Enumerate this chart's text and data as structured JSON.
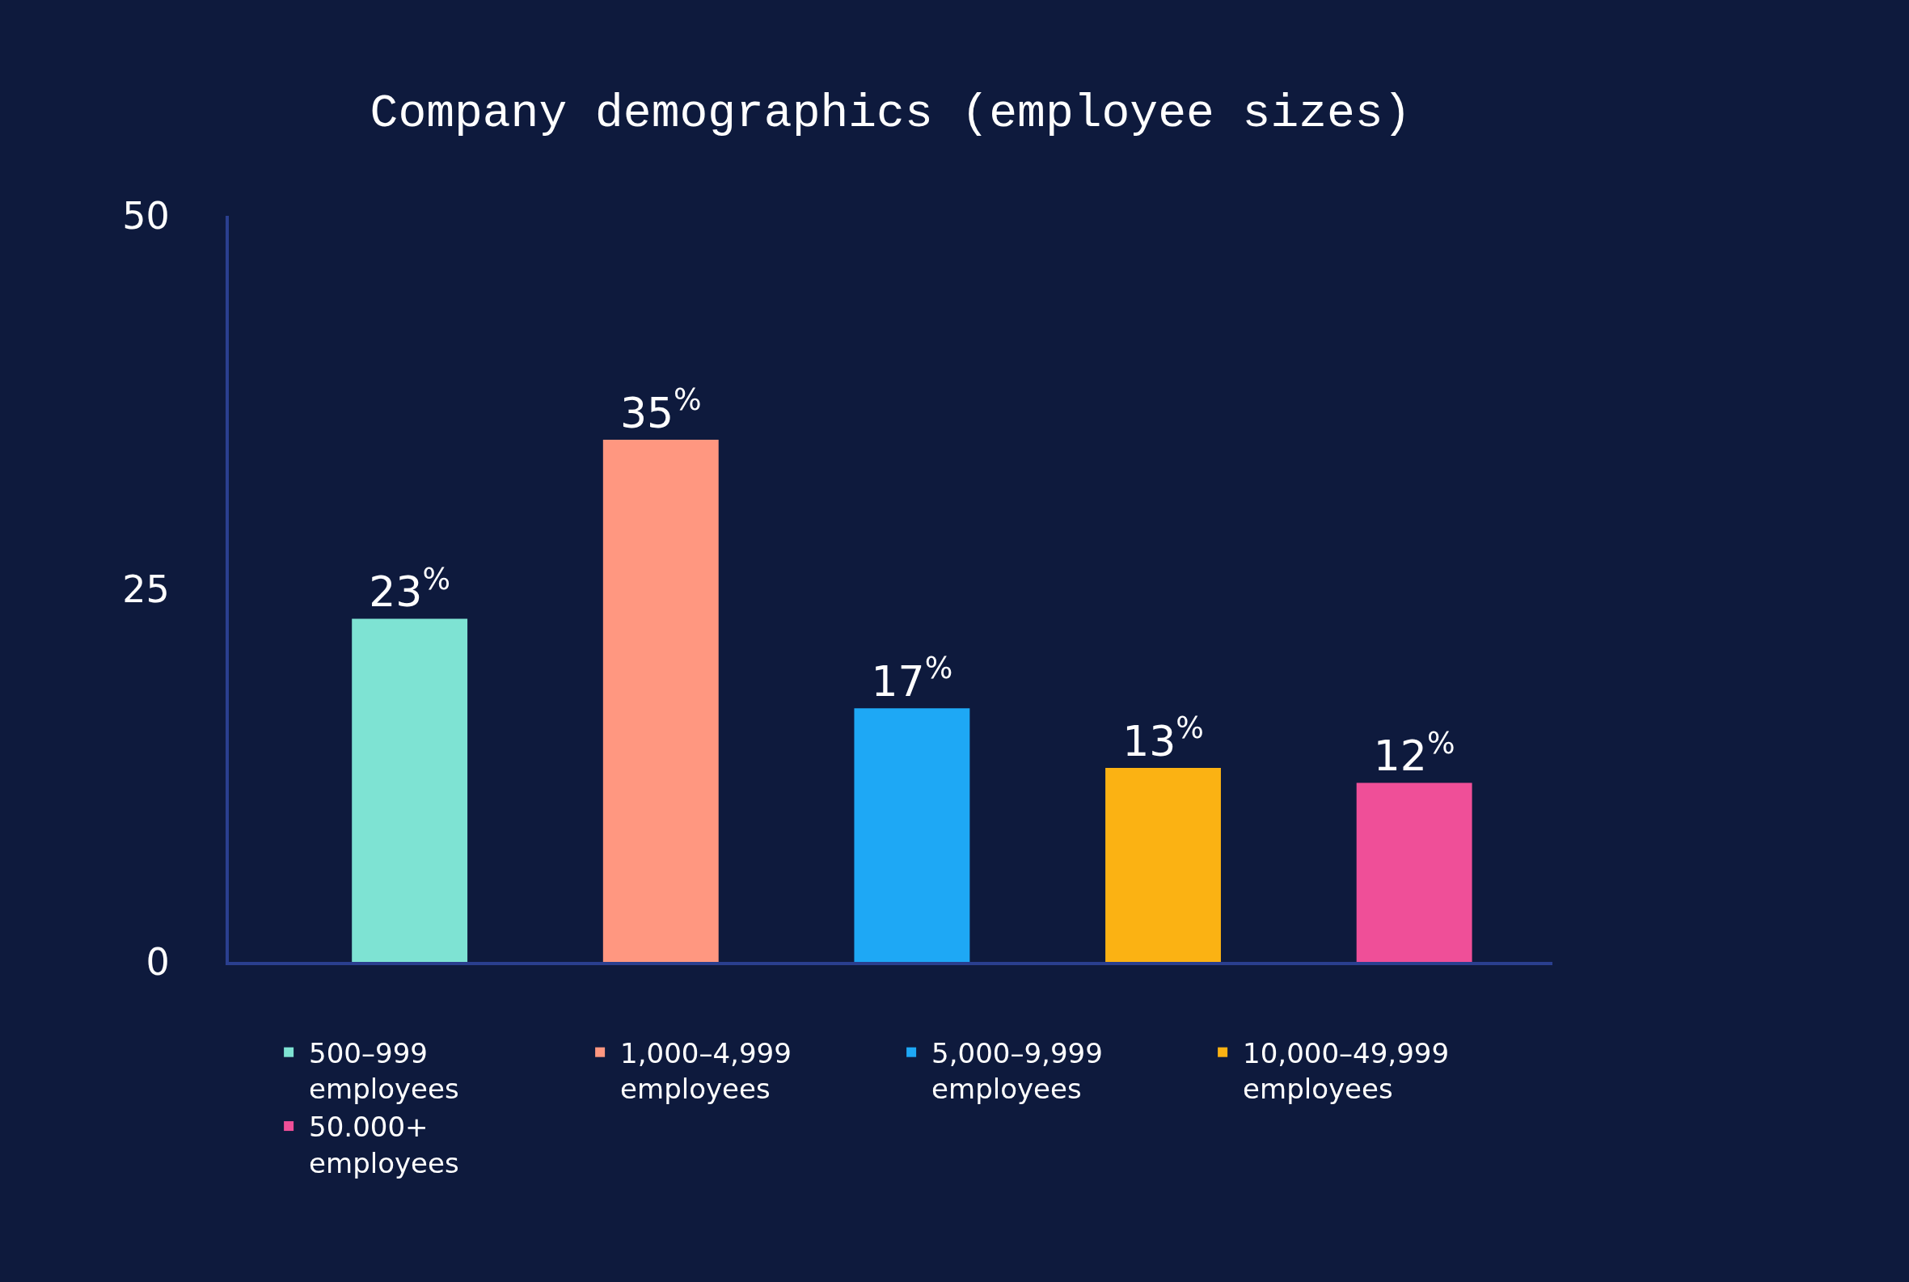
{
  "chart_data": {
    "type": "bar",
    "title": "Company demographics (employee sizes)",
    "categories": [
      null,
      null,
      null,
      null,
      null
    ],
    "series": [
      {
        "name": "500–999 employees",
        "color": "#7ee3d3",
        "values": [
          23,
          null,
          null,
          null,
          null
        ],
        "value_labels": [
          "23$^{%}$",
          null,
          null,
          null,
          null
        ]
      },
      {
        "name": "1,000–4,999 employees",
        "color": "#ff9780",
        "values": [
          null,
          35,
          null,
          null,
          null
        ],
        "value_labels": [
          null,
          "35$^{%}$",
          null,
          null,
          null
        ]
      },
      {
        "name": "5,000–9,999 employees",
        "color": "#1ea8f5",
        "values": [
          null,
          null,
          17,
          null,
          null
        ],
        "value_labels": [
          null,
          null,
          "17$^{%}$",
          null,
          null
        ]
      },
      {
        "name": "10,000–49,999 employees",
        "color": "#fbb213",
        "values": [
          null,
          null,
          null,
          13,
          null
        ],
        "value_labels": [
          null,
          null,
          null,
          "13$^{%}$",
          null
        ]
      },
      {
        "name": "50.000+ employees",
        "color": "#ef4f98",
        "values": [
          null,
          null,
          null,
          null,
          12
        ],
        "value_labels": [
          null,
          null,
          null,
          null,
          "12$^{%}$"
        ]
      }
    ],
    "ylim": [
      0,
      50
    ],
    "yticks": [
      0,
      25,
      50
    ],
    "grid": false,
    "legend": "bottom"
  }
}
